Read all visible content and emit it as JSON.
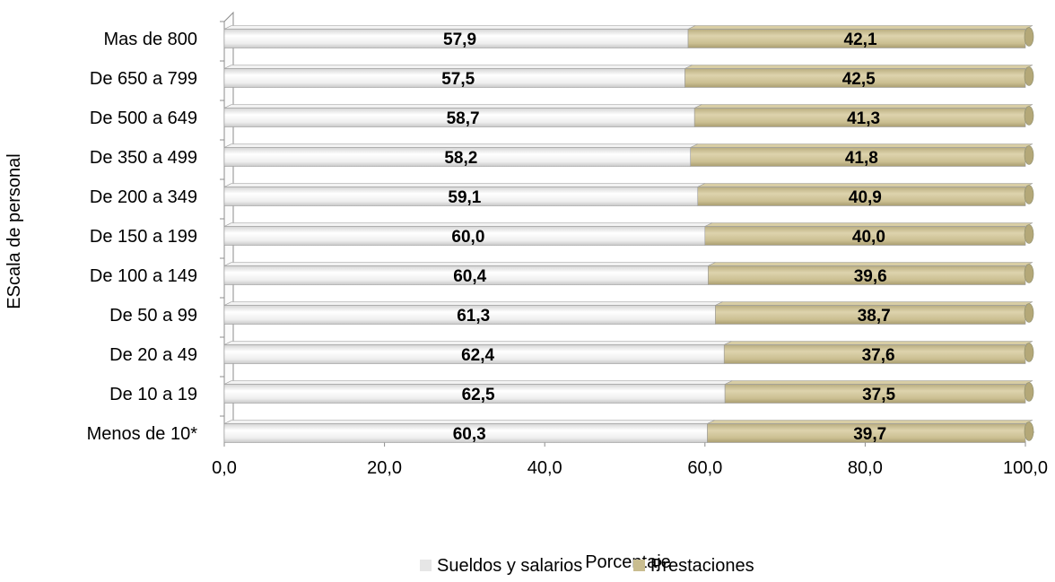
{
  "chart_data": {
    "type": "bar",
    "orientation": "horizontal",
    "stacked": true,
    "categories": [
      "Mas de 800",
      "De 650 a 799",
      "De 500 a 649",
      "De 350 a 499",
      "De 200 a 349",
      "De 150 a 199",
      "De 100 a 149",
      "De 50 a 99",
      "De 20 a 49",
      "De 10 a 19",
      "Menos de 10*"
    ],
    "series": [
      {
        "name": "Sueldos y salarios",
        "color": "#e6e6e6",
        "values": [
          57.9,
          57.5,
          58.7,
          58.2,
          59.1,
          60.0,
          60.4,
          61.3,
          62.4,
          62.5,
          60.3
        ],
        "labels": [
          "57,9",
          "57,5",
          "58,7",
          "58,2",
          "59,1",
          "60,0",
          "60,4",
          "61,3",
          "62,4",
          "62,5",
          "60,3"
        ]
      },
      {
        "name": "Prestaciones",
        "color": "#c9bd8f",
        "values": [
          42.1,
          42.5,
          41.3,
          41.8,
          40.9,
          40.0,
          39.6,
          38.7,
          37.6,
          37.5,
          39.7
        ],
        "labels": [
          "42,1",
          "42,5",
          "41,3",
          "41,8",
          "40,9",
          "40,0",
          "39,6",
          "38,7",
          "37,6",
          "37,5",
          "39,7"
        ]
      }
    ],
    "xlabel": "Porcentaje",
    "ylabel": "EScala de personal",
    "xlim": [
      0,
      100
    ],
    "xticks": [
      0,
      20,
      40,
      60,
      80,
      100
    ],
    "xtick_labels": [
      "0,0",
      "20,0",
      "40,0",
      "60,0",
      "80,0",
      "100,0"
    ],
    "legend_position": "bottom",
    "grid": false
  }
}
